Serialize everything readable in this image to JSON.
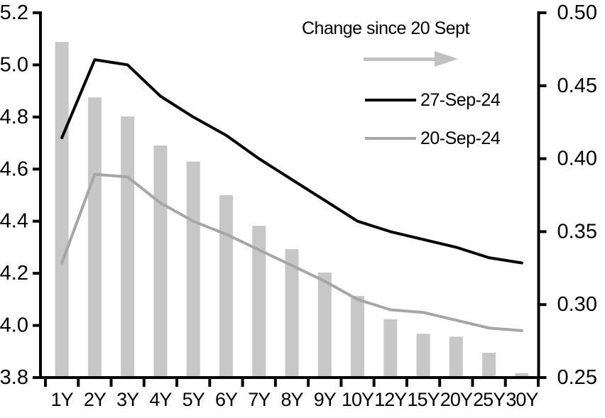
{
  "page": {
    "background": "#ffffff"
  },
  "legend": {
    "title": "Change since 20 Sept",
    "arrow_icon": "right-arrow",
    "arrow_color": "#c1c1c1",
    "entries": [
      {
        "label": "27-Sep-24",
        "color": "#000000"
      },
      {
        "label": "20-Sep-24",
        "color": "#a6a6a6"
      }
    ]
  },
  "chart_data": {
    "type": "combo",
    "subtype": "bar + line, dual axis",
    "categories": [
      "1Y",
      "2Y",
      "3Y",
      "4Y",
      "5Y",
      "6Y",
      "7Y",
      "8Y",
      "9Y",
      "10Y",
      "12Y",
      "15Y",
      "20Y",
      "25Y",
      "30Y"
    ],
    "series": [
      {
        "name": "Change since 20 Sept",
        "type": "bar",
        "axis": "right",
        "color": "#c7c7c7",
        "values": [
          0.48,
          0.442,
          0.429,
          0.409,
          0.398,
          0.375,
          0.354,
          0.338,
          0.322,
          0.306,
          0.29,
          0.28,
          0.278,
          0.267,
          0.253
        ]
      },
      {
        "name": "27-Sep-24",
        "type": "line",
        "axis": "left",
        "color": "#000000",
        "values": [
          4.72,
          5.02,
          5.0,
          4.88,
          4.8,
          4.73,
          4.64,
          4.56,
          4.48,
          4.4,
          4.36,
          4.33,
          4.3,
          4.26,
          4.24
        ]
      },
      {
        "name": "20-Sep-24",
        "type": "line",
        "axis": "left",
        "color": "#a6a6a6",
        "values": [
          4.24,
          4.58,
          4.57,
          4.47,
          4.4,
          4.35,
          4.29,
          4.23,
          4.17,
          4.1,
          4.06,
          4.05,
          4.02,
          3.99,
          3.98
        ]
      }
    ],
    "left_axis": {
      "min": 3.8,
      "max": 5.2,
      "step": 0.2,
      "tick_labels": [
        "5.2",
        "5.0",
        "4.8",
        "4.6",
        "4.4",
        "4.2",
        "4.0",
        "3.8"
      ]
    },
    "right_axis": {
      "min": 0.25,
      "max": 0.5,
      "step": 0.05,
      "tick_labels": [
        "0.50",
        "0.45",
        "0.40",
        "0.35",
        "0.30",
        "0.25"
      ]
    },
    "x_axis": {
      "tick_labels": [
        "1Y",
        "2Y",
        "3Y",
        "4Y",
        "5Y",
        "6Y",
        "7Y",
        "8Y",
        "9Y",
        "10Y",
        "12Y",
        "15Y",
        "20Y",
        "25Y",
        "30Y"
      ]
    },
    "grid": false,
    "legend_position": "top-center-inside",
    "title": "",
    "xlabel": "",
    "ylabel": ""
  }
}
